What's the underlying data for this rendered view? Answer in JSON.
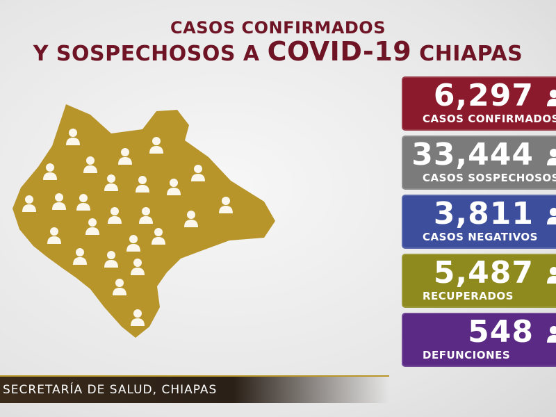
{
  "header": {
    "line1": "CASOS CONFIRMADOS",
    "line2_start": "Y SOSPECHOSOS A",
    "line2_highlight": "COVID-19",
    "line2_end": "CHIAPAS"
  },
  "cards": [
    {
      "value": "6,297",
      "label": "CASOS CONFIRMADOS",
      "color": "#8a1a2c"
    },
    {
      "value": "33,444",
      "label": "CASOS SOSPECHOSOS",
      "color": "#7b7b7b"
    },
    {
      "value": "3,811",
      "label": "CASOS NEGATIVOS",
      "color": "#3d4f9c"
    },
    {
      "value": "5,487",
      "label": "RECUPERADOS",
      "color": "#8e8a1e"
    },
    {
      "value": "548",
      "label": "DEFUNCIONES",
      "color": "#5a2a85"
    }
  ],
  "footer": {
    "source": "SECRETARÍA DE SALUD, CHIAPAS"
  }
}
